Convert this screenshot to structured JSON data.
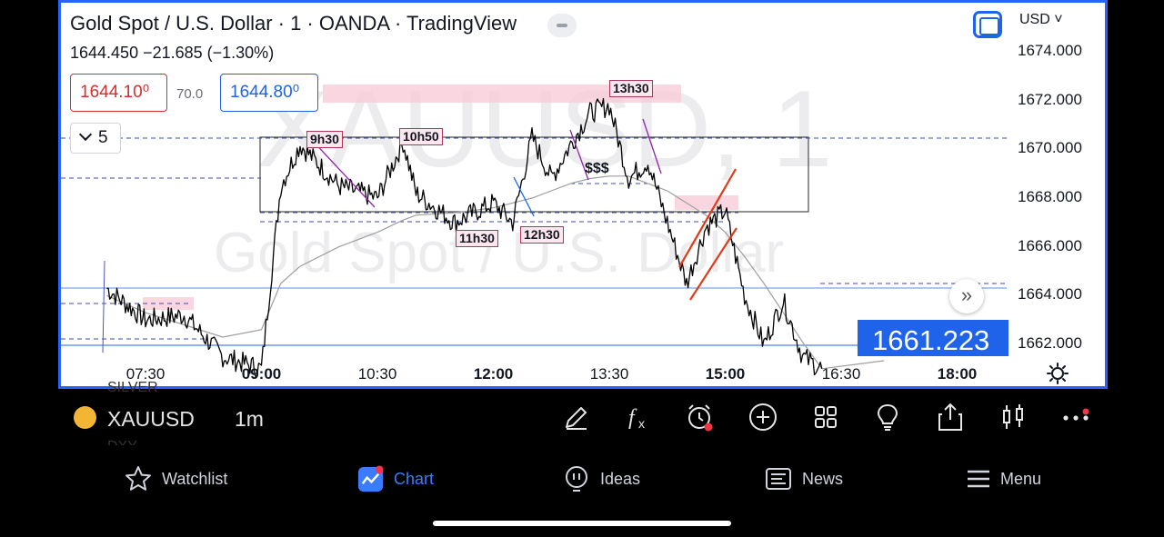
{
  "header": {
    "title": "Gold Spot / U.S. Dollar · 1 · OANDA · TradingView",
    "quote": "1644.450  −21.685 (−1.30%)",
    "sell_price": "1644.10⁰",
    "spread": "70.0",
    "buy_price": "1644.80⁰",
    "interval_value": "5",
    "currency": "USD"
  },
  "watermark": {
    "symbol": "XAUUSD, 1",
    "name": "Gold Spot / U.S. Dollar"
  },
  "price_axis": [
    "1674.000",
    "1672.000",
    "1670.000",
    "1668.000",
    "1666.000",
    "1664.000",
    "1662.000"
  ],
  "last_price": "1661.223",
  "time_axis": [
    {
      "label": "07:30",
      "bold": false
    },
    {
      "label": "09:00",
      "bold": true
    },
    {
      "label": "10:30",
      "bold": false
    },
    {
      "label": "12:00",
      "bold": true
    },
    {
      "label": "13:30",
      "bold": false
    },
    {
      "label": "15:00",
      "bold": true
    },
    {
      "label": "16:30",
      "bold": false
    },
    {
      "label": "18:00",
      "bold": true
    }
  ],
  "annotations": {
    "l_9h30": "9h30",
    "l_10h50": "10h50",
    "l_11h30": "11h30",
    "l_12h30": "12h30",
    "l_13h30": "13h30",
    "dollars": "$$$"
  },
  "chart_data": {
    "type": "line",
    "x": [
      "07:00",
      "07:30",
      "08:00",
      "08:30",
      "09:00",
      "09:15",
      "09:30",
      "10:00",
      "10:30",
      "10:50",
      "11:00",
      "11:30",
      "12:00",
      "12:15",
      "12:30",
      "12:45",
      "13:00",
      "13:15",
      "13:30",
      "13:45",
      "14:00",
      "14:15",
      "14:30",
      "14:45",
      "15:00",
      "15:15",
      "15:30",
      "15:45",
      "16:00",
      "16:15"
    ],
    "y": [
      1664.3,
      1663.0,
      1663.2,
      1661.5,
      1661.0,
      1668.5,
      1670.2,
      1668.5,
      1668.0,
      1670.3,
      1668.2,
      1667.0,
      1667.8,
      1667.0,
      1670.5,
      1668.8,
      1670.2,
      1671.5,
      1671.8,
      1668.8,
      1669.5,
      1667.0,
      1664.5,
      1666.8,
      1667.5,
      1664.0,
      1662.0,
      1663.8,
      1661.5,
      1661.0
    ],
    "ylim": [
      1660.8,
      1675
    ],
    "moving_average": [
      1664.0,
      1663.3,
      1662.8,
      1662.3,
      1662.6,
      1664.5,
      1665.2,
      1666.0,
      1666.6,
      1667.1,
      1667.3,
      1667.4,
      1667.6,
      1667.8,
      1668.0,
      1668.3,
      1668.6,
      1668.8,
      1668.9,
      1668.9,
      1668.6,
      1668.3,
      1667.8,
      1667.3,
      1666.6,
      1665.6,
      1664.5,
      1663.3,
      1662.1,
      1661.0
    ],
    "title": "Gold Spot / U.S. Dollar · 1 · OANDA · TradingView",
    "grid": false,
    "colors": {
      "price": "#000000",
      "ma": "#9e9e9e",
      "box": "#4a4a4a",
      "zone": "#f8c9d6",
      "trend": "#e03a17",
      "axis_accent": "#1e63e9"
    }
  },
  "bottom_bar": {
    "symbol": "XAUUSD",
    "timeframe": "1m",
    "ghost_top": "SILVER",
    "ghost_bottom": "DXY",
    "tools": [
      "pencil-icon",
      "fx-icon",
      "alarm-icon",
      "add-icon",
      "grid-icon",
      "lightbulb-icon",
      "share-icon",
      "candles-icon",
      "more-icon"
    ]
  },
  "nav": {
    "watchlist": "Watchlist",
    "chart": "Chart",
    "ideas": "Ideas",
    "news": "News",
    "menu": "Menu"
  }
}
